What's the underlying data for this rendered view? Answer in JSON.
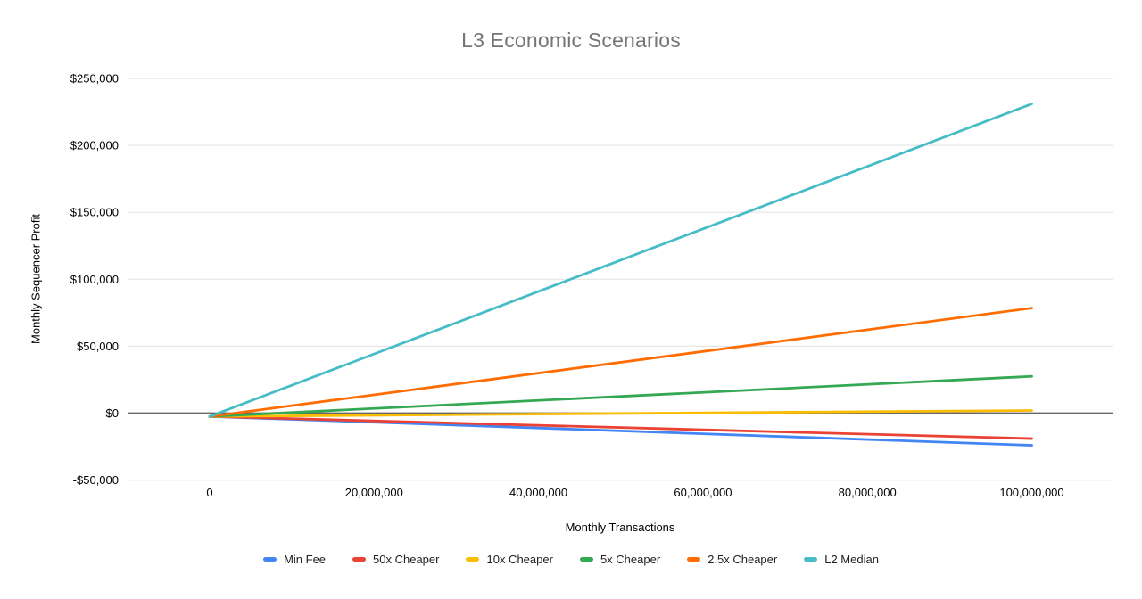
{
  "chart_data": {
    "type": "line",
    "title": "L3 Economic Scenarios",
    "xlabel": "Monthly Transactions",
    "ylabel": "Monthly Sequencer Profit",
    "xlim": [
      0,
      100000000
    ],
    "ylim": [
      -50000,
      250000
    ],
    "grid": "horizontal",
    "legend_position": "bottom",
    "x": [
      0,
      100000000
    ],
    "series": [
      {
        "name": "Min Fee",
        "color": "#4285F4",
        "values": [
          -2500,
          -24000
        ]
      },
      {
        "name": "50x Cheaper",
        "color": "#EA4335",
        "values": [
          -2500,
          -19000
        ]
      },
      {
        "name": "10x Cheaper",
        "color": "#FBBC04",
        "values": [
          -2500,
          2000
        ]
      },
      {
        "name": "5x Cheaper",
        "color": "#34A853",
        "values": [
          -2500,
          27500
        ]
      },
      {
        "name": "2.5x Cheaper",
        "color": "#FF6D01",
        "values": [
          -2500,
          78500
        ]
      },
      {
        "name": "L2 Median",
        "color": "#46BDC6",
        "values": [
          -2500,
          231000
        ]
      }
    ],
    "y_ticks": [
      {
        "value": 250000,
        "label": "$250,000"
      },
      {
        "value": 200000,
        "label": "$200,000"
      },
      {
        "value": 150000,
        "label": "$150,000"
      },
      {
        "value": 100000,
        "label": "$100,000"
      },
      {
        "value": 50000,
        "label": "$50,000"
      },
      {
        "value": 0,
        "label": "$0"
      },
      {
        "value": -50000,
        "label": "-$50,000"
      }
    ],
    "x_ticks": [
      {
        "value": 0,
        "label": "0"
      },
      {
        "value": 20000000,
        "label": "20,000,000"
      },
      {
        "value": 40000000,
        "label": "40,000,000"
      },
      {
        "value": 60000000,
        "label": "60,000,000"
      },
      {
        "value": 80000000,
        "label": "80,000,000"
      },
      {
        "value": 100000000,
        "label": "100,000,000"
      }
    ]
  },
  "style": {
    "title_color": "#757575",
    "text_color": "#000000",
    "gridline_color": "#e6e6e6",
    "zero_line_color": "#666666",
    "background": "#ffffff"
  }
}
